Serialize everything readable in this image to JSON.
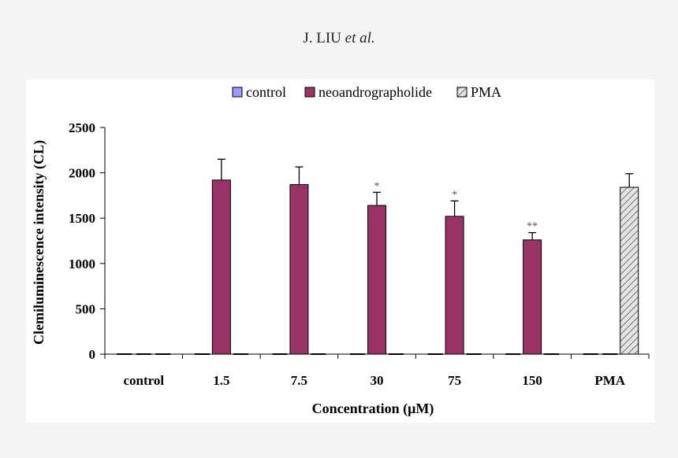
{
  "header": {
    "author": "J. LIU ",
    "etal": "et al."
  },
  "chart_data": {
    "type": "bar",
    "categories": [
      "control",
      "1.5",
      "7.5",
      "30",
      "75",
      "150",
      "PMA"
    ],
    "series": [
      {
        "name": "control",
        "color": "#9999ff",
        "pattern": "solid",
        "values": [
          0,
          0,
          0,
          0,
          0,
          0,
          0
        ],
        "errors": [
          0,
          0,
          0,
          0,
          0,
          0,
          0
        ]
      },
      {
        "name": "neoandrographolide",
        "color": "#993366",
        "pattern": "solid",
        "values": [
          0,
          1920,
          1870,
          1640,
          1520,
          1260,
          0
        ],
        "errors": [
          0,
          230,
          195,
          145,
          170,
          80,
          0
        ]
      },
      {
        "name": "PMA",
        "color": "#d0d0d0",
        "pattern": "hatched",
        "values": [
          0,
          0,
          0,
          0,
          0,
          0,
          1840
        ],
        "errors": [
          0,
          0,
          0,
          0,
          0,
          0,
          150
        ]
      }
    ],
    "annotations": [
      {
        "category": "30",
        "series": "neoandrographolide",
        "text": "*"
      },
      {
        "category": "75",
        "series": "neoandrographolide",
        "text": "*"
      },
      {
        "category": "150",
        "series": "neoandrographolide",
        "text": "**"
      }
    ],
    "ylim": [
      0,
      2500
    ],
    "yticks": [
      0,
      500,
      1000,
      1500,
      2000,
      2500
    ],
    "ylabel": "Clemiluminescence intensity (CL)",
    "xlabel": "Concentration (μM)",
    "legend_position": "top",
    "grid": false
  }
}
